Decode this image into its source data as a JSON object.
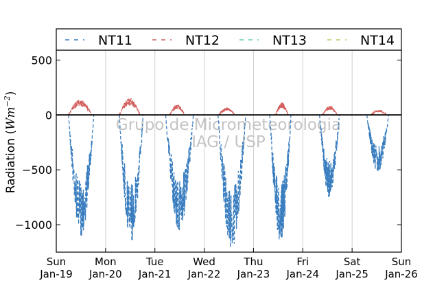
{
  "chart_data": {
    "type": "line",
    "ylabel": "Radiation ($Wm^{-2}$)",
    "ylabel_main": "Radiation (",
    "ylabel_unit": "Wm",
    "ylabel_exp": "−2",
    "ylabel_close": ")",
    "watermark": [
      "Grupo de Micrometeorologia",
      "IAG / USP"
    ],
    "ylim": [
      -1250,
      590
    ],
    "yticks": [
      500,
      0,
      -500,
      -1000
    ],
    "ytick_labels": [
      "500",
      "0",
      "−500",
      "−1000"
    ],
    "xlim": [
      0,
      7
    ],
    "xticks": [
      0,
      1,
      2,
      3,
      4,
      5,
      6,
      7
    ],
    "xtick_labels": [
      [
        "Sun",
        "Jan-19"
      ],
      [
        "Mon",
        "Jan-20"
      ],
      [
        "Tue",
        "Jan-21"
      ],
      [
        "Wed",
        "Jan-22"
      ],
      [
        "Thu",
        "Jan-23"
      ],
      [
        "Fri",
        "Jan-24"
      ],
      [
        "Sat",
        "Jan-25"
      ],
      [
        "Sun",
        "Jan-26"
      ]
    ],
    "grid": "vertical",
    "legend_position": "top",
    "series": [
      {
        "name": "NT11",
        "color": "#3a7ebf",
        "days": [
          {
            "start": 0.25,
            "end": 0.76,
            "peak": -1100
          },
          {
            "start": 1.28,
            "end": 1.76,
            "peak": -1150
          },
          {
            "start": 2.22,
            "end": 2.78,
            "peak": -1050
          },
          {
            "start": 3.28,
            "end": 3.84,
            "peak": -1220
          },
          {
            "start": 4.33,
            "end": 4.76,
            "peak": -1150
          },
          {
            "start": 5.34,
            "end": 5.74,
            "peak": -760
          },
          {
            "start": 6.3,
            "end": 6.74,
            "peak": -520
          }
        ]
      },
      {
        "name": "NT12",
        "color": "#d45f5f",
        "days": [
          {
            "start": 0.25,
            "end": 0.72,
            "peak": 140
          },
          {
            "start": 1.28,
            "end": 1.7,
            "peak": 150
          },
          {
            "start": 2.3,
            "end": 2.6,
            "peak": 90
          },
          {
            "start": 3.3,
            "end": 3.62,
            "peak": 65
          },
          {
            "start": 4.45,
            "end": 4.7,
            "peak": 110
          },
          {
            "start": 5.4,
            "end": 5.7,
            "peak": 80
          },
          {
            "start": 6.38,
            "end": 6.7,
            "peak": 45
          }
        ]
      },
      {
        "name": "NT13",
        "color": "#5fd0b0",
        "days": []
      },
      {
        "name": "NT14",
        "color": "#b8cc6a",
        "days": []
      }
    ]
  }
}
